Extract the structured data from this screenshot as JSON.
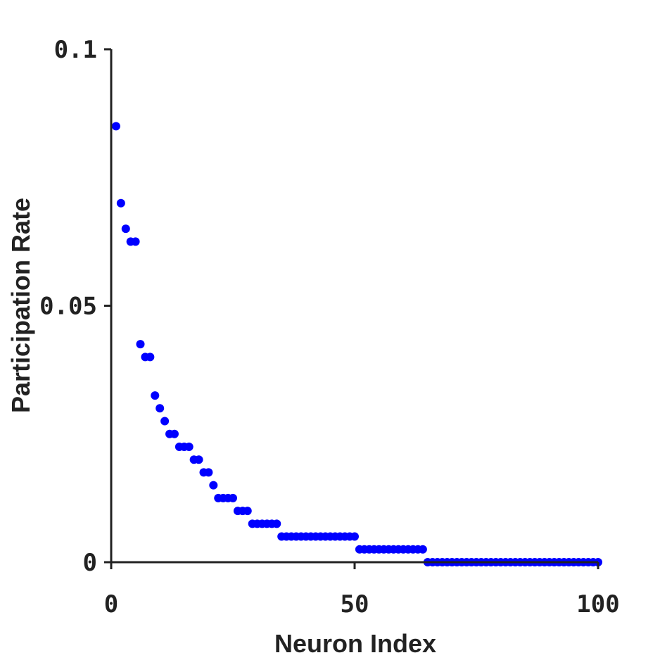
{
  "chart_data": {
    "type": "scatter",
    "xlabel": "Neuron Index",
    "ylabel": "Participation Rate",
    "xlim": [
      0,
      100
    ],
    "ylim": [
      0,
      0.1
    ],
    "xticks": [
      0,
      50,
      100
    ],
    "xtick_labels": [
      "0",
      "50",
      "100"
    ],
    "yticks": [
      0,
      0.05,
      0.1
    ],
    "ytick_labels": [
      "0",
      "0.05",
      "0.1"
    ],
    "grid": false,
    "marker_color": "#0000ff",
    "series": [
      {
        "x": [
          1,
          2,
          3,
          4,
          5,
          6,
          7,
          8,
          9,
          10,
          11,
          12,
          13,
          14,
          15,
          16,
          17,
          18,
          19,
          20,
          21,
          22,
          23,
          24,
          25,
          26,
          27,
          28,
          29,
          30,
          31,
          32,
          33,
          34,
          35,
          36,
          37,
          38,
          39,
          40,
          41,
          42,
          43,
          44,
          45,
          46,
          47,
          48,
          49,
          50,
          51,
          52,
          53,
          54,
          55,
          56,
          57,
          58,
          59,
          60,
          61,
          62,
          63,
          64,
          65,
          66,
          67,
          68,
          69,
          70,
          71,
          72,
          73,
          74,
          75,
          76,
          77,
          78,
          79,
          80,
          81,
          82,
          83,
          84,
          85,
          86,
          87,
          88,
          89,
          90,
          91,
          92,
          93,
          94,
          95,
          96,
          97,
          98,
          99,
          100
        ],
        "values": [
          0.085,
          0.07,
          0.065,
          0.0625,
          0.0625,
          0.0425,
          0.04,
          0.04,
          0.0325,
          0.03,
          0.0275,
          0.025,
          0.025,
          0.0225,
          0.0225,
          0.0225,
          0.02,
          0.02,
          0.0175,
          0.0175,
          0.015,
          0.0125,
          0.0125,
          0.0125,
          0.0125,
          0.01,
          0.01,
          0.01,
          0.0075,
          0.0075,
          0.0075,
          0.0075,
          0.0075,
          0.0075,
          0.005,
          0.005,
          0.005,
          0.005,
          0.005,
          0.005,
          0.005,
          0.005,
          0.005,
          0.005,
          0.005,
          0.005,
          0.005,
          0.005,
          0.005,
          0.005,
          0.0025,
          0.0025,
          0.0025,
          0.0025,
          0.0025,
          0.0025,
          0.0025,
          0.0025,
          0.0025,
          0.0025,
          0.0025,
          0.0025,
          0.0025,
          0.0025,
          0,
          0,
          0,
          0,
          0,
          0,
          0,
          0,
          0,
          0,
          0,
          0,
          0,
          0,
          0,
          0,
          0,
          0,
          0,
          0,
          0,
          0,
          0,
          0,
          0,
          0,
          0,
          0,
          0,
          0,
          0,
          0,
          0,
          0,
          0,
          0
        ]
      }
    ]
  }
}
